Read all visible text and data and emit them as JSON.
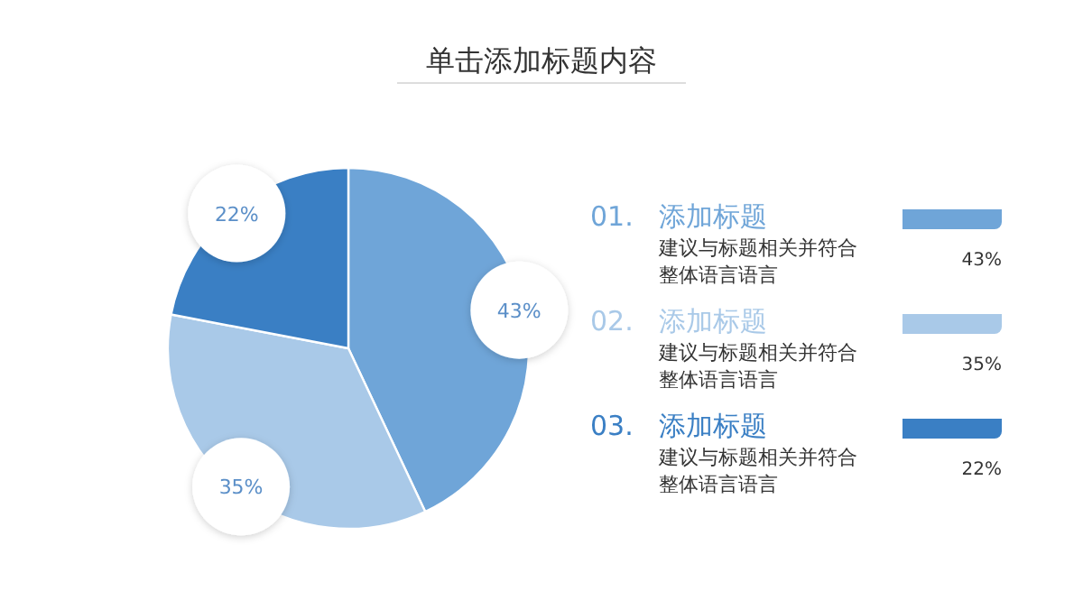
{
  "chart_data": {
    "type": "pie",
    "title": "单击添加标题内容",
    "categories": [
      "添加标题",
      "添加标题",
      "添加标题"
    ],
    "values": [
      43,
      35,
      22
    ],
    "value_labels": [
      "43%",
      "35%",
      "22%"
    ],
    "colors": [
      "#6fa5d8",
      "#a9c9e8",
      "#3a7fc4"
    ],
    "annotations": [
      "01.",
      "建议与标题相关并符合整体语言语言",
      "02.",
      "建议与标题相关并符合整体语言语言",
      "03.",
      "建议与标题相关并符合整体语言语言"
    ]
  }
}
